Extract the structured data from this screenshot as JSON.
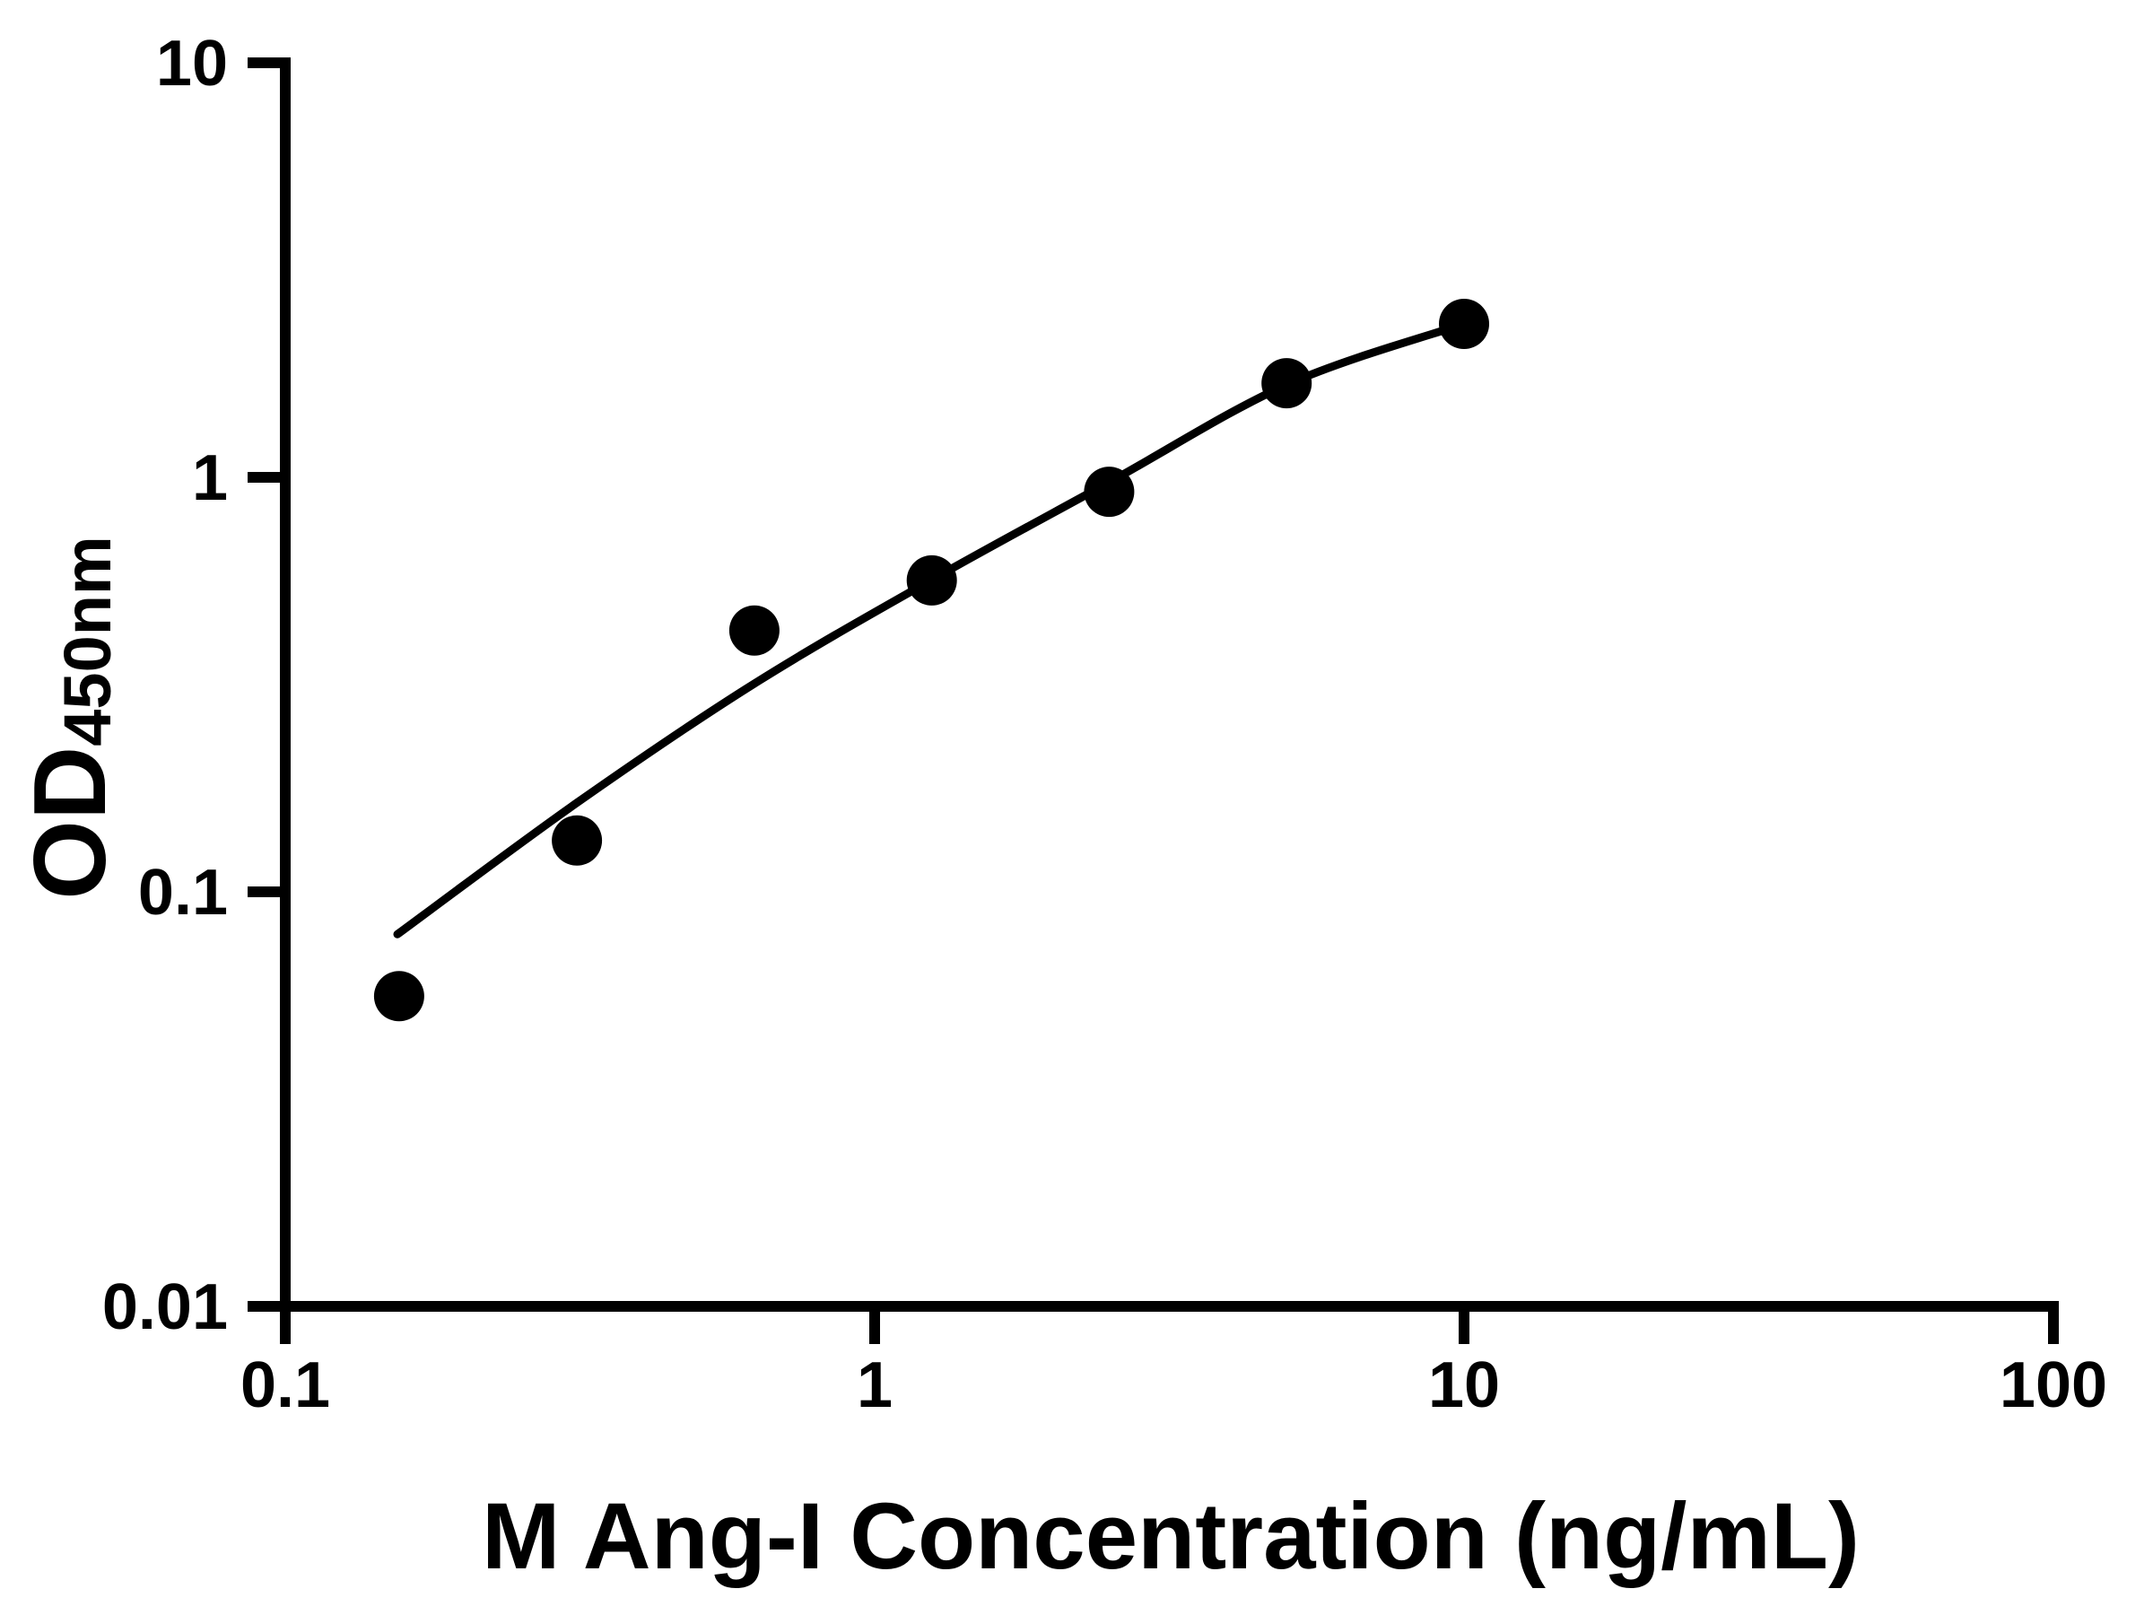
{
  "figure": {
    "background_color": "#ffffff",
    "foreground_color": "#000000"
  },
  "chart_data": {
    "type": "scatter",
    "subtype": "scatter-with-fit-line",
    "title": "",
    "xlabel": "M Ang-I Concentration (ng/mL)",
    "ylabel_main": "OD",
    "ylabel_sub": "450nm",
    "x_scale": "log",
    "y_scale": "log",
    "xlim": [
      0.1,
      100
    ],
    "ylim": [
      0.01,
      10
    ],
    "grid": "off",
    "legend": "none",
    "x_ticks": [
      {
        "value": 0.1,
        "label": "0.1"
      },
      {
        "value": 1,
        "label": "1"
      },
      {
        "value": 10,
        "label": "10"
      },
      {
        "value": 100,
        "label": "100"
      }
    ],
    "y_ticks": [
      {
        "value": 0.01,
        "label": "0.01"
      },
      {
        "value": 0.1,
        "label": "0.1"
      },
      {
        "value": 1,
        "label": "1"
      },
      {
        "value": 10,
        "label": "10"
      }
    ],
    "series": [
      {
        "marker": "filled-circle",
        "color": "#000000",
        "x": [
          0.156,
          0.3125,
          0.625,
          1.25,
          2.5,
          5,
          10
        ],
        "y": [
          0.056,
          0.133,
          0.427,
          0.564,
          0.923,
          1.687,
          2.345
        ]
      }
    ],
    "fit_curve": {
      "color": "#000000",
      "x": [
        0.155,
        0.3125,
        0.625,
        1.25,
        2.5,
        5,
        10
      ],
      "y": [
        0.079,
        0.164,
        0.318,
        0.566,
        0.973,
        1.672,
        2.345
      ]
    }
  }
}
